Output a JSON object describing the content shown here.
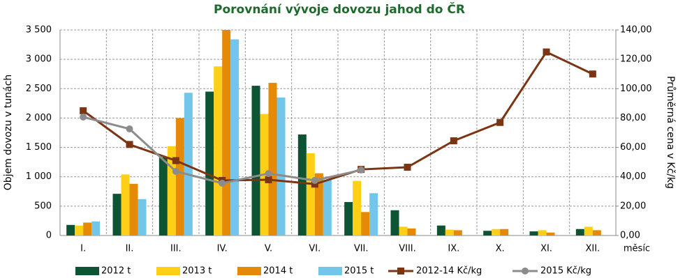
{
  "chart_data": {
    "type": "bar",
    "title": "Porovnání vývoje dovozu jahod do ČR",
    "y_label": "Objem dovozu v tunách",
    "y2_label": "Průměrná cena v Kč/kg",
    "x_label": "měsíc",
    "categories": [
      "I.",
      "II.",
      "III.",
      "IV.",
      "V.",
      "VI.",
      "VII.",
      "VIII.",
      "IX.",
      "X.",
      "XI.",
      "XII."
    ],
    "ylim": [
      0,
      3500
    ],
    "yticks": [
      0,
      500,
      {
        "value": 1000,
        "label": "1 000"
      },
      {
        "value": 1500,
        "label": "1 500"
      },
      {
        "value": 2000,
        "label": "2 000"
      },
      {
        "value": 2500,
        "label": "2 500"
      },
      {
        "value": 3000,
        "label": "3 000"
      },
      {
        "value": 3500,
        "label": "3 500"
      }
    ],
    "y2lim": [
      0,
      140
    ],
    "y2ticks": [
      {
        "value": 0,
        "label": "0,00"
      },
      {
        "value": 20,
        "label": "20,00"
      },
      {
        "value": 40,
        "label": "40,00"
      },
      {
        "value": 60,
        "label": "60,00"
      },
      {
        "value": 80,
        "label": "80,00"
      },
      {
        "value": 100,
        "label": "100,00"
      },
      {
        "value": 120,
        "label": "120,00"
      },
      {
        "value": 140,
        "label": "140,00"
      }
    ],
    "grid": true,
    "legend": "bottom",
    "series": [
      {
        "name": "2012 t",
        "type": "bar",
        "color": "#0c5433",
        "values": [
          180,
          710,
          1330,
          2450,
          2550,
          1720,
          570,
          430,
          170,
          80,
          70,
          110
        ]
      },
      {
        "name": "2013 t",
        "type": "bar",
        "color": "#fdd017",
        "values": [
          170,
          1040,
          1520,
          2880,
          2070,
          1400,
          930,
          150,
          100,
          110,
          90,
          150
        ]
      },
      {
        "name": "2014 t",
        "type": "bar",
        "color": "#e48a07",
        "values": [
          220,
          880,
          2000,
          3500,
          2600,
          1060,
          400,
          120,
          90,
          110,
          50,
          90
        ]
      },
      {
        "name": "2015 t",
        "type": "bar",
        "color": "#72c6ea",
        "values": [
          240,
          620,
          2430,
          3340,
          2350,
          950,
          720,
          null,
          null,
          null,
          null,
          null
        ]
      },
      {
        "name": "2012-14 Kč/kg",
        "type": "line",
        "marker": "square",
        "axis": "y2",
        "color": "#7b3513",
        "values": [
          85,
          62,
          51,
          37.5,
          38,
          35,
          45,
          46.5,
          64.5,
          77,
          125,
          110
        ]
      },
      {
        "name": "2015 Kč/kg",
        "type": "line",
        "marker": "circle",
        "axis": "y2",
        "color": "#8c8c8c",
        "values": [
          80.7,
          72.6,
          43.7,
          35.6,
          42.2,
          37.5,
          44.6,
          null,
          null,
          null,
          null,
          null
        ]
      }
    ]
  }
}
